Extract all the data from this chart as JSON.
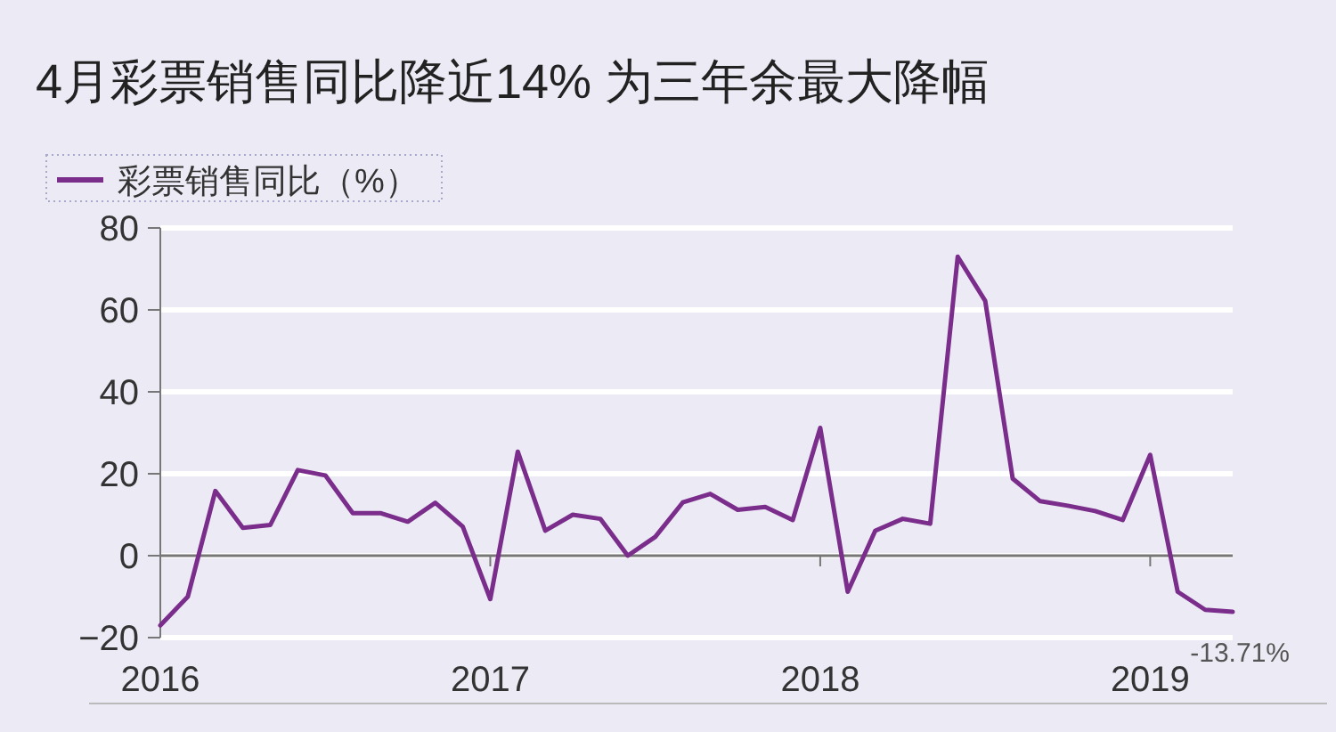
{
  "chart_data": {
    "type": "line",
    "title": "4月彩票销售同比降近14% 为三年余最大降幅",
    "x": [
      "2016-01",
      "2016-02",
      "2016-03",
      "2016-04",
      "2016-05",
      "2016-06",
      "2016-07",
      "2016-08",
      "2016-09",
      "2016-10",
      "2016-11",
      "2016-12",
      "2017-01",
      "2017-02",
      "2017-03",
      "2017-04",
      "2017-05",
      "2017-06",
      "2017-07",
      "2017-08",
      "2017-09",
      "2017-10",
      "2017-11",
      "2017-12",
      "2018-01",
      "2018-02",
      "2018-03",
      "2018-04",
      "2018-05",
      "2018-06",
      "2018-07",
      "2018-08",
      "2018-09",
      "2018-10",
      "2018-11",
      "2018-12",
      "2019-01",
      "2019-02",
      "2019-03",
      "2019-04"
    ],
    "series": [
      {
        "name": "彩票销售同比（%）",
        "color": "#7b2d8b",
        "values": [
          -17,
          -10,
          15.8,
          6.8,
          7.5,
          20.9,
          19.6,
          10.4,
          10.4,
          8.3,
          12.9,
          7.1,
          -10.6,
          25.4,
          6.1,
          10,
          9,
          0,
          4.6,
          13,
          15.1,
          11.2,
          11.9,
          8.7,
          31.2,
          -8.8,
          6.1,
          9,
          7.8,
          73,
          62.2,
          18.8,
          13.3,
          12.2,
          10.9,
          8.7,
          24.6,
          -8.8,
          -13.2,
          -13.71
        ]
      }
    ],
    "xlim": [
      "2016-01",
      "2019-04"
    ],
    "xticks": [
      "2016",
      "2017",
      "2018",
      "2019"
    ],
    "ylim": [
      -20,
      80
    ],
    "yticks": [
      -20,
      0,
      20,
      40,
      60,
      80
    ],
    "grid": "y",
    "legend": "top left",
    "marker": "none",
    "line_style": "solid",
    "annotations": [
      {
        "text": "-13.71%",
        "x": "2019-04",
        "y": -13.71
      }
    ]
  }
}
